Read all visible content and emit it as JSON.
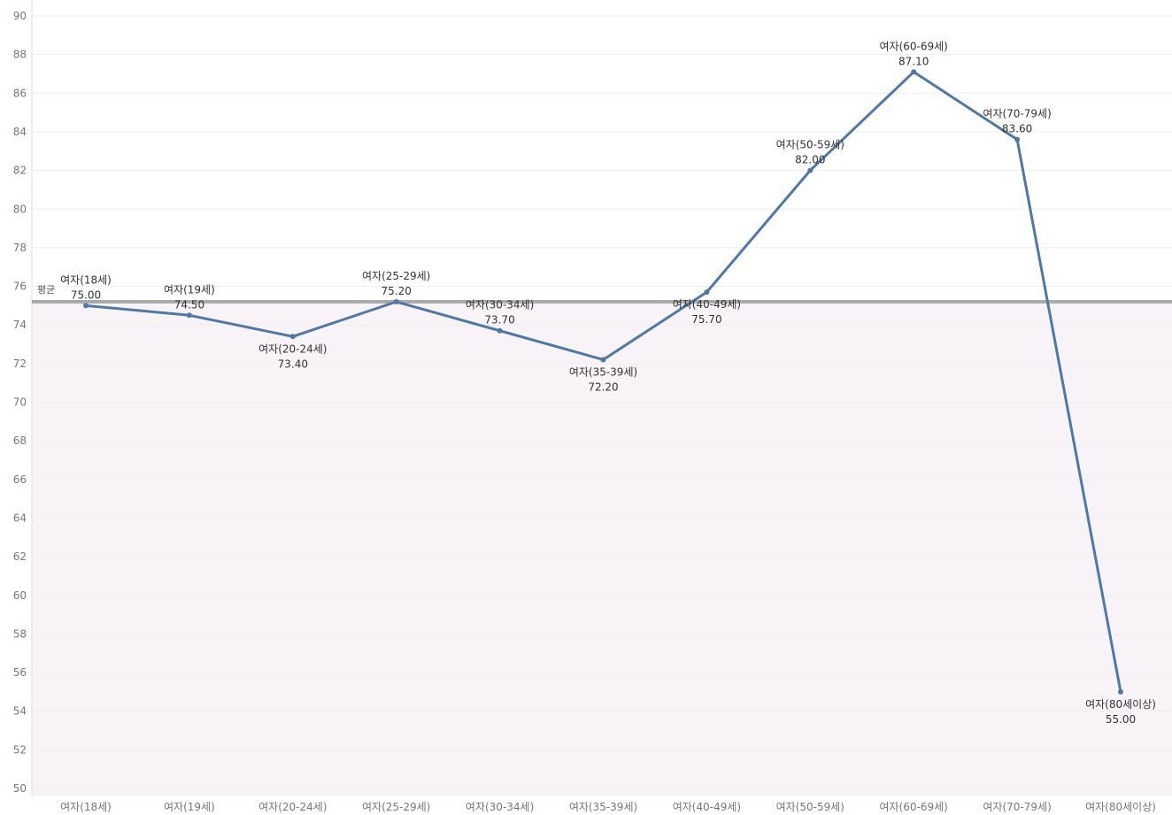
{
  "chart_data": {
    "type": "line",
    "categories": [
      "여자(18세)",
      "여자(19세)",
      "여자(20-24세)",
      "여자(25-29세)",
      "여자(30-34세)",
      "여자(35-39세)",
      "여자(40-49세)",
      "여자(50-59세)",
      "여자(60-69세)",
      "여자(70-79세)",
      "여자(80세이상)"
    ],
    "values": [
      75.0,
      74.5,
      73.4,
      75.2,
      73.7,
      72.2,
      75.7,
      82.0,
      87.1,
      83.6,
      55.0
    ],
    "value_labels": [
      "75.00",
      "74.50",
      "73.40",
      "75.20",
      "73.70",
      "72.20",
      "75.70",
      "82.00",
      "87.10",
      "83.60",
      "55.00"
    ],
    "point_labels": [
      "여자(18세)",
      "여자(19세)",
      "여자(20-24세)",
      "여자(25-29세)",
      "여자(30-34세)",
      "여자(35-39세)",
      "여자(40-49세)",
      "여자(50-59세)",
      "여자(60-69세)",
      "여자(70-79세)",
      "여자(80세이상)"
    ],
    "label_position": [
      "above",
      "above",
      "below",
      "above",
      "above",
      "below",
      "below",
      "above",
      "above",
      "above",
      "below"
    ],
    "yticks": [
      "50",
      "52",
      "54",
      "56",
      "58",
      "60",
      "62",
      "64",
      "66",
      "68",
      "70",
      "72",
      "74",
      "76",
      "78",
      "80",
      "82",
      "84",
      "86",
      "88",
      "90"
    ],
    "ylim": [
      50,
      90
    ],
    "reference_line": {
      "label": "평균",
      "value": 75.2
    },
    "colors": {
      "line": "#4e79a7",
      "reference": "#aaaaaa",
      "band": "#f7f3f7",
      "grid": "#eeeeee"
    },
    "grid": true,
    "title": "",
    "xlabel": "",
    "ylabel": ""
  }
}
